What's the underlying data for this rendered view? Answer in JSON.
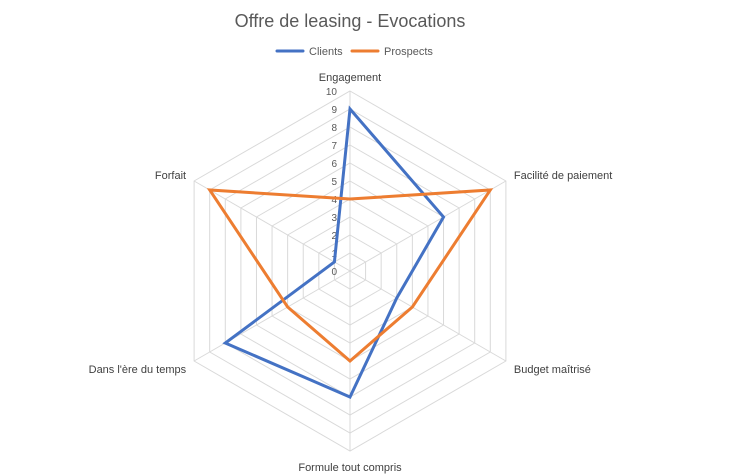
{
  "chart_data": {
    "type": "radar",
    "title": "Offre de leasing - Evocations",
    "categories": [
      "Engagement",
      "Facilité de paiement",
      "Budget maîtrisé",
      "Formule tout compris",
      "Dans l'ère du temps",
      "Forfait"
    ],
    "series": [
      {
        "name": "Clients",
        "values": [
          9,
          6,
          3,
          7,
          8,
          1
        ],
        "color": "#4472C4"
      },
      {
        "name": "Prospects",
        "values": [
          4,
          9,
          4,
          5,
          4,
          9
        ],
        "color": "#ED7D31"
      }
    ],
    "r_range": [
      0,
      10
    ],
    "ticks": [
      "0",
      "1",
      "2",
      "3",
      "4",
      "5",
      "6",
      "7",
      "8",
      "9",
      "10"
    ],
    "grid": true,
    "legend_position": "top",
    "grid_color": "#D9D9D9"
  }
}
